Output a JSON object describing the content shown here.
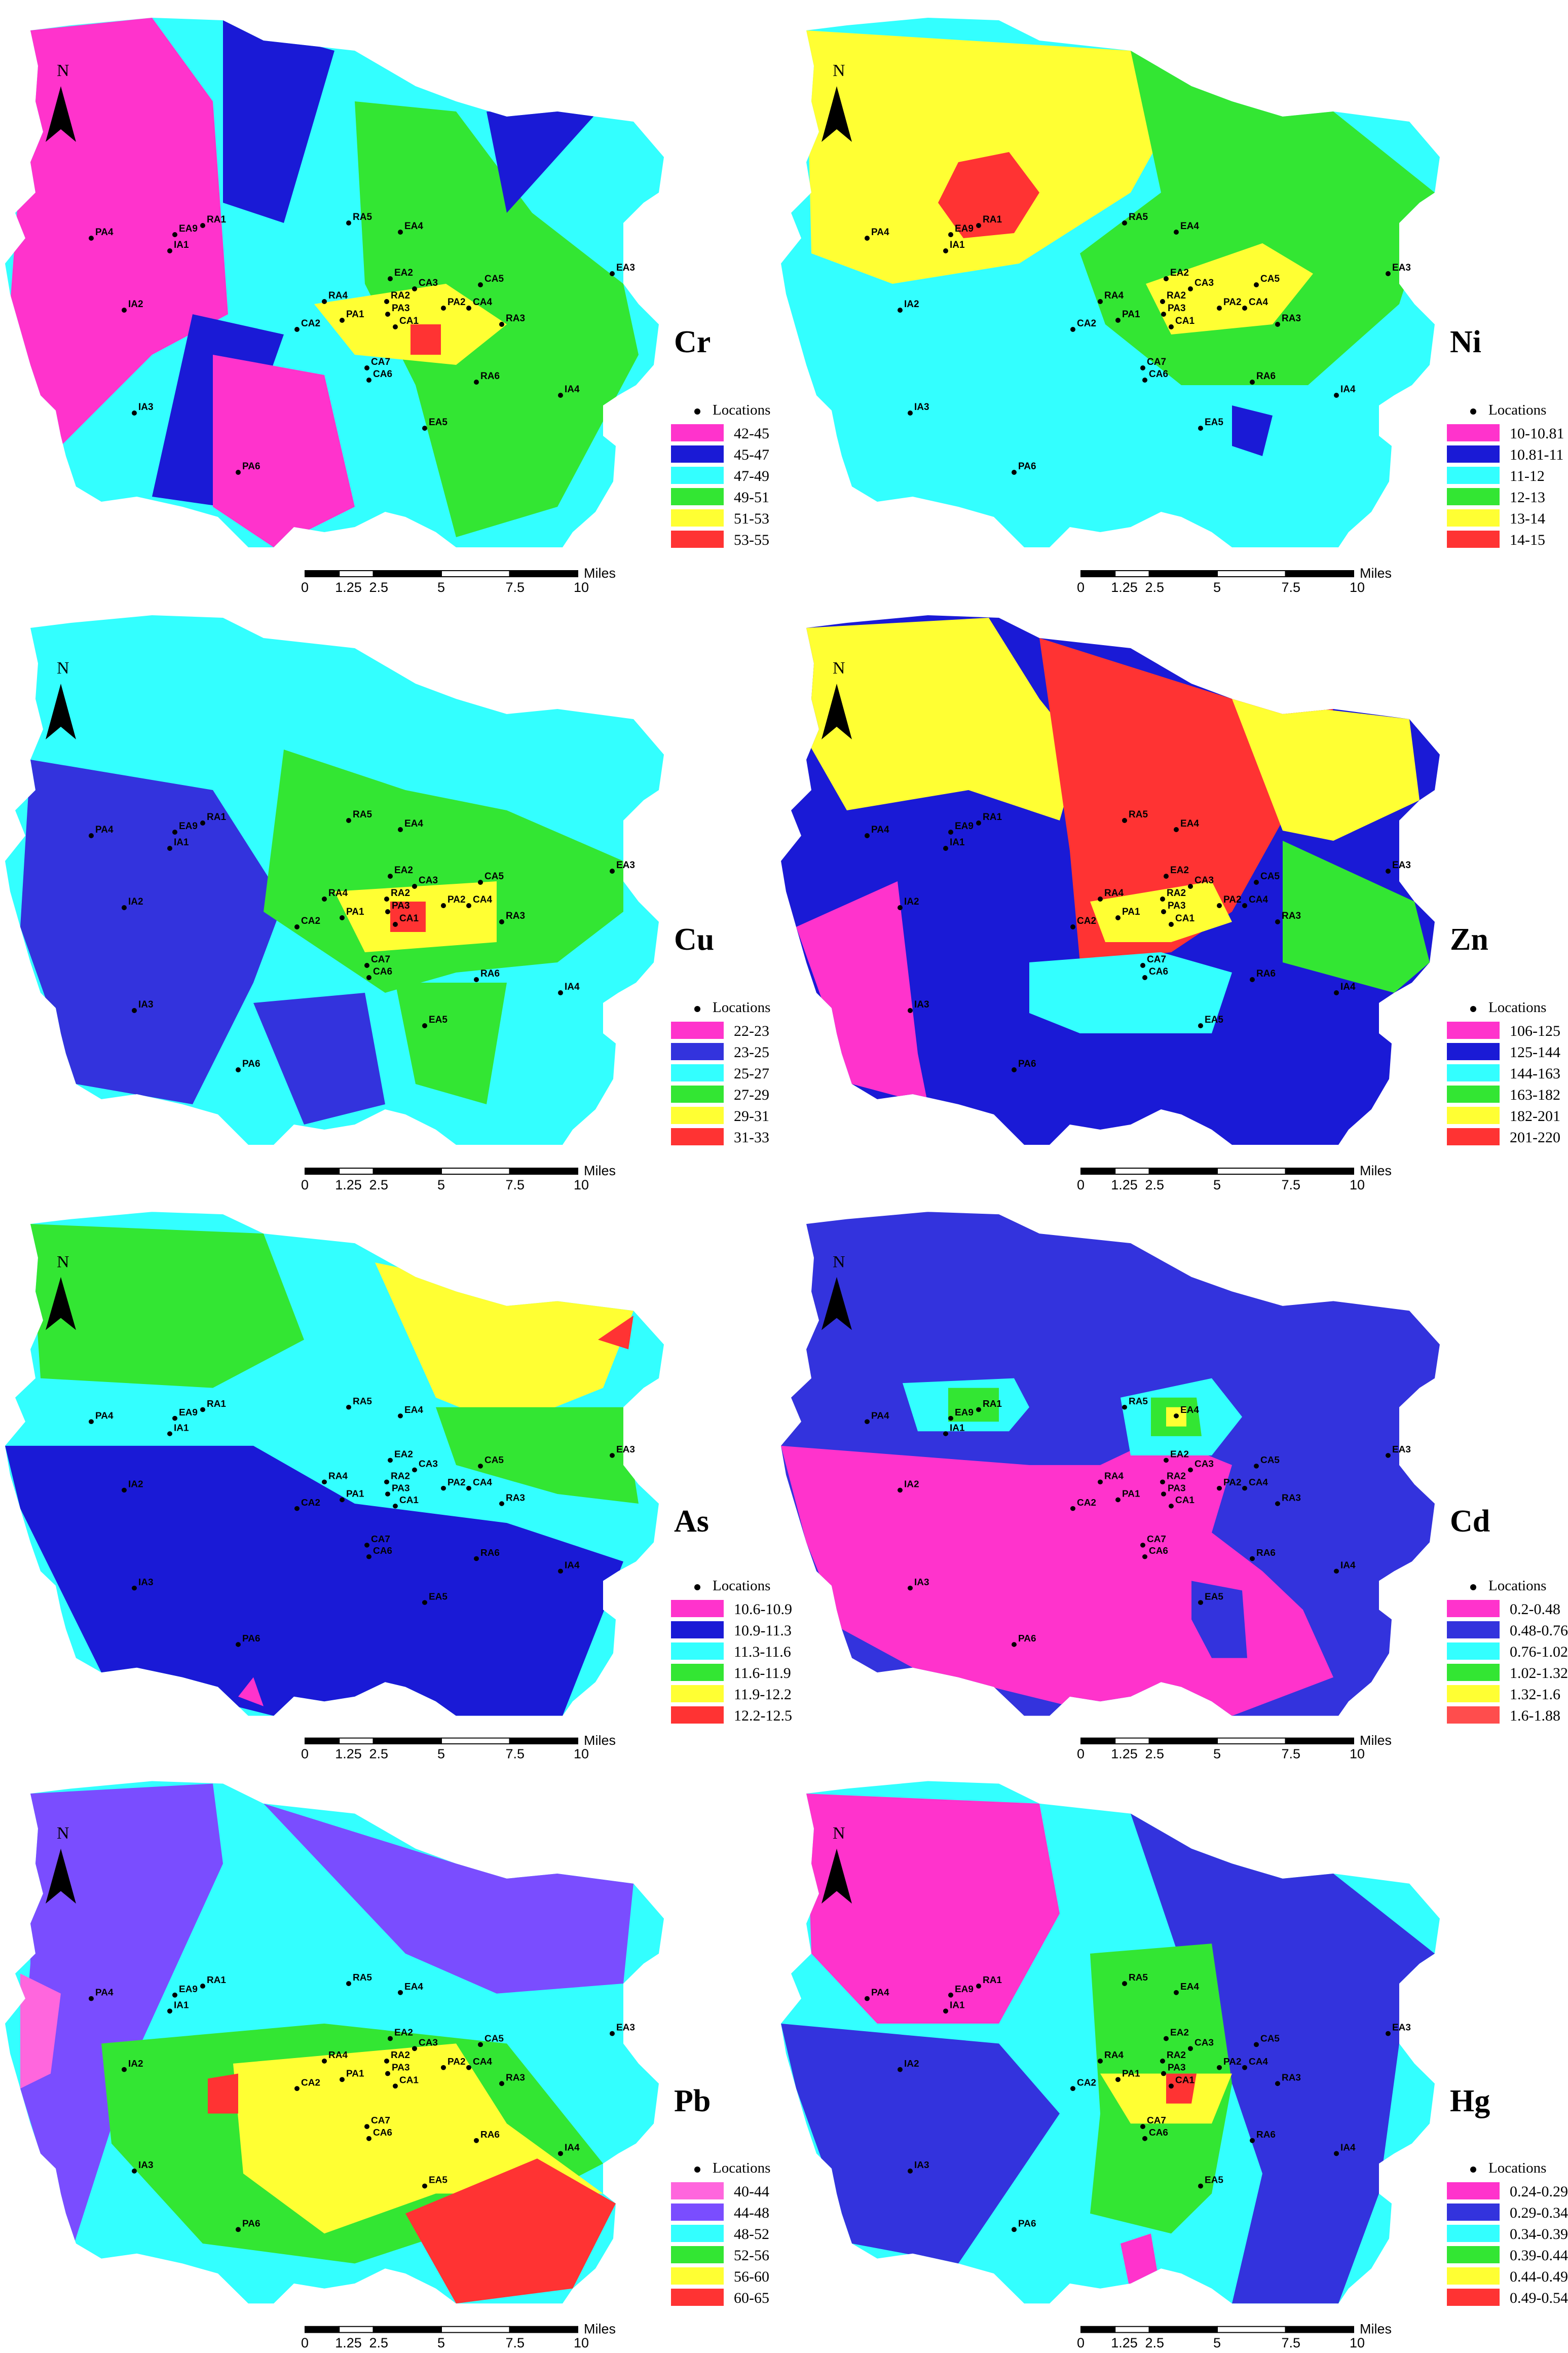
{
  "north_label": "N",
  "legend_title": "Locations",
  "scale_bar": {
    "ticks": [
      "0",
      "1.25",
      "2.5",
      "5",
      "7.5",
      "10"
    ],
    "unit": "Miles"
  },
  "locations": [
    "PA4",
    "EA9",
    "RA1",
    "IA1",
    "RA5",
    "EA4",
    "EA3",
    "EA2",
    "CA3",
    "CA5",
    "IA2",
    "RA4",
    "RA2",
    "PA2",
    "CA4",
    "PA3",
    "CA2",
    "PA1",
    "CA1",
    "RA3",
    "CA7",
    "CA6",
    "RA6",
    "IA4",
    "IA3",
    "EA5",
    "PA6"
  ],
  "panels": [
    {
      "id": "cr",
      "symbol": "Cr",
      "legend": [
        {
          "range": "42-45",
          "color": "#ff33cc"
        },
        {
          "range": "45-47",
          "color": "#1a1ad6"
        },
        {
          "range": "47-49",
          "color": "#33ffff"
        },
        {
          "range": "49-51",
          "color": "#33e633"
        },
        {
          "range": "51-53",
          "color": "#ffff33"
        },
        {
          "range": "53-55",
          "color": "#ff3333"
        }
      ]
    },
    {
      "id": "ni",
      "symbol": "Ni",
      "legend": [
        {
          "range": "10-10.81",
          "color": "#ff33cc"
        },
        {
          "range": "10.81-11",
          "color": "#1a1ad6"
        },
        {
          "range": "11-12",
          "color": "#33ffff"
        },
        {
          "range": "12-13",
          "color": "#33e633"
        },
        {
          "range": "13-14",
          "color": "#ffff33"
        },
        {
          "range": "14-15",
          "color": "#ff3333"
        }
      ]
    },
    {
      "id": "cu",
      "symbol": "Cu",
      "legend": [
        {
          "range": "22-23",
          "color": "#ff33cc"
        },
        {
          "range": "23-25",
          "color": "#3333dd"
        },
        {
          "range": "25-27",
          "color": "#33ffff"
        },
        {
          "range": "27-29",
          "color": "#33e633"
        },
        {
          "range": "29-31",
          "color": "#ffff33"
        },
        {
          "range": "31-33",
          "color": "#ff3333"
        }
      ]
    },
    {
      "id": "zn",
      "symbol": "Zn",
      "legend": [
        {
          "range": "106-125",
          "color": "#ff33cc"
        },
        {
          "range": "125-144",
          "color": "#1a1ad6"
        },
        {
          "range": "144-163",
          "color": "#33ffff"
        },
        {
          "range": "163-182",
          "color": "#33e633"
        },
        {
          "range": "182-201",
          "color": "#ffff33"
        },
        {
          "range": "201-220",
          "color": "#ff3333"
        }
      ]
    },
    {
      "id": "as",
      "symbol": "As",
      "legend": [
        {
          "range": "10.6-10.9",
          "color": "#ff33cc"
        },
        {
          "range": "10.9-11.3",
          "color": "#1a1ad6"
        },
        {
          "range": "11.3-11.6",
          "color": "#33ffff"
        },
        {
          "range": "11.6-11.9",
          "color": "#33e633"
        },
        {
          "range": "11.9-12.2",
          "color": "#ffff33"
        },
        {
          "range": "12.2-12.5",
          "color": "#ff3333"
        }
      ]
    },
    {
      "id": "cd",
      "symbol": "Cd",
      "legend": [
        {
          "range": "0.2-0.48",
          "color": "#ff33cc"
        },
        {
          "range": "0.48-0.76",
          "color": "#3333dd"
        },
        {
          "range": "0.76-1.02",
          "color": "#33ffff"
        },
        {
          "range": "1.02-1.32",
          "color": "#33e633"
        },
        {
          "range": "1.32-1.6",
          "color": "#ffff33"
        },
        {
          "range": "1.6-1.88",
          "color": "#ff4d4d"
        }
      ]
    },
    {
      "id": "pb",
      "symbol": "Pb",
      "legend": [
        {
          "range": "40-44",
          "color": "#ff66dd"
        },
        {
          "range": "44-48",
          "color": "#7a4dff"
        },
        {
          "range": "48-52",
          "color": "#33ffff"
        },
        {
          "range": "52-56",
          "color": "#33e633"
        },
        {
          "range": "56-60",
          "color": "#ffff33"
        },
        {
          "range": "60-65",
          "color": "#ff3333"
        }
      ]
    },
    {
      "id": "hg",
      "symbol": "Hg",
      "legend": [
        {
          "range": "0.24-0.29",
          "color": "#ff33cc"
        },
        {
          "range": "0.29-0.34",
          "color": "#3333dd"
        },
        {
          "range": "0.34-0.39",
          "color": "#33ffff"
        },
        {
          "range": "0.39-0.44",
          "color": "#33e633"
        },
        {
          "range": "0.44-0.49",
          "color": "#ffff33"
        },
        {
          "range": "0.49-0.54",
          "color": "#ff3333"
        }
      ]
    }
  ]
}
